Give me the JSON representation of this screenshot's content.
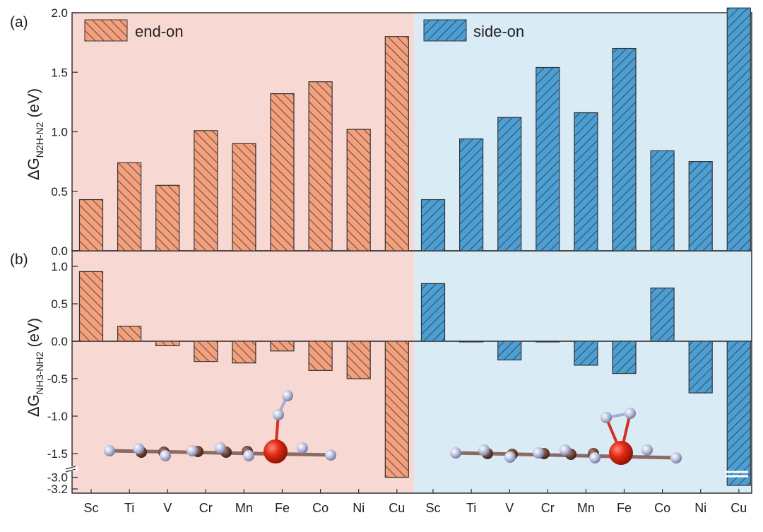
{
  "chart_data": [
    {
      "panel": "(a)",
      "type": "bar",
      "ylabel_main": "ΔG",
      "ylabel_sub": "N2H-N2",
      "ylabel_unit": " (eV)",
      "ylim": [
        0,
        2.0
      ],
      "yticks": [
        0.0,
        0.5,
        1.0,
        1.5,
        2.0
      ],
      "ytick_labels": [
        "0.0",
        "0.5",
        "1.0",
        "1.5",
        "2.0"
      ],
      "categories": [
        "Sc",
        "Ti",
        "V",
        "Cr",
        "Mn",
        "Fe",
        "Co",
        "Ni",
        "Cu"
      ],
      "series": [
        {
          "name": "end-on",
          "values": [
            0.43,
            0.74,
            0.55,
            1.01,
            0.9,
            1.32,
            1.42,
            1.02,
            1.8
          ]
        },
        {
          "name": "side-on",
          "values": [
            0.43,
            0.94,
            1.12,
            1.54,
            1.16,
            1.7,
            0.84,
            0.75,
            2.04
          ]
        }
      ]
    },
    {
      "panel": "(b)",
      "type": "bar",
      "ylabel_main": "ΔG",
      "ylabel_sub": "NH3-NH2",
      "ylabel_unit": " (eV)",
      "ylim": [
        -3.2,
        1.1
      ],
      "axis_break": [
        -1.8,
        -3.0
      ],
      "yticks": [
        1.0,
        0.5,
        0.0,
        -0.5,
        -1.0,
        -1.5,
        -3.0,
        -3.2
      ],
      "ytick_labels": [
        "1.0",
        "0.5",
        "0.0",
        "-0.5",
        "-1.0",
        "-1.5",
        "-3.0",
        "-3.2"
      ],
      "categories": [
        "Sc",
        "Ti",
        "V",
        "Cr",
        "Mn",
        "Fe",
        "Co",
        "Ni",
        "Cu"
      ],
      "series": [
        {
          "name": "end-on",
          "values": [
            0.93,
            0.2,
            -0.06,
            -0.27,
            -0.29,
            -0.13,
            -0.39,
            -0.5,
            -2.95
          ]
        },
        {
          "name": "side-on",
          "values": [
            0.77,
            0.0,
            -0.25,
            0.0,
            -0.32,
            -0.43,
            0.71,
            -0.69,
            -3.15
          ]
        }
      ]
    }
  ],
  "legend": {
    "end_on": "end-on",
    "side_on": "side-on"
  },
  "colors": {
    "end_on_fill": "#f4a07d",
    "end_on_bg": "#f8d8d2",
    "side_on_fill": "#4b9fd4",
    "side_on_bg": "#d9ebf5",
    "hatch": "#333333"
  },
  "icons": {
    "end_on_structure": "end-on-molecule-icon",
    "side_on_structure": "side-on-molecule-icon"
  }
}
